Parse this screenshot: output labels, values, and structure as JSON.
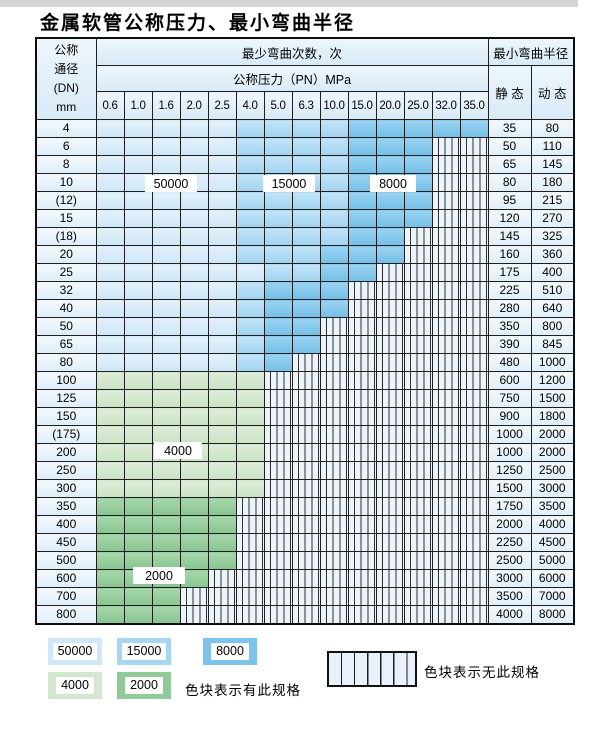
{
  "page": {
    "title": "金属软管公称压力、最小弯曲半径"
  },
  "table": {
    "header": {
      "dn_lines": [
        "公称",
        "通径",
        "(DN)",
        "mm"
      ],
      "min_cycles": "最少弯曲次数，次",
      "pressure_title": "公称压力（PN）MPa",
      "min_radius": "最小弯曲半径",
      "static_label": "静 态",
      "dynamic_label": "动 态",
      "pressure_columns": [
        "0.6",
        "1.0",
        "1.6",
        "2.0",
        "2.5",
        "4.0",
        "5.0",
        "6.3",
        "10.0",
        "15.0",
        "20.0",
        "25.0",
        "32.0",
        "35.0"
      ]
    }
  },
  "legend": {
    "items": [
      {
        "label": "50000",
        "zone": "L",
        "color": "#cfe7f7"
      },
      {
        "label": "15000",
        "zone": "M",
        "color": "#a6d6f2"
      },
      {
        "label": "8000",
        "zone": "D",
        "color": "#7ec4ea"
      },
      {
        "label": "4000",
        "zone": "g",
        "color": "#d2e7cd"
      },
      {
        "label": "2000",
        "zone": "G",
        "color": "#90ca97"
      }
    ],
    "has_spec_text": "色块表示有此规格",
    "no_spec_text": "色块表示无此规格"
  },
  "chart_data": {
    "type": "table",
    "title": "金属软管公称压力、最小弯曲半径",
    "x_columns_pressure_PN_MPa": [
      0.6,
      1.0,
      1.6,
      2.0,
      2.5,
      4.0,
      5.0,
      6.3,
      10.0,
      15.0,
      20.0,
      25.0,
      32.0,
      35.0
    ],
    "zone_cycle_counts": {
      "L": 50000,
      "M": 15000,
      "D": 8000,
      "g": 4000,
      "G": 2000,
      "x": null
    },
    "radius_columns": [
      "静态",
      "动态"
    ],
    "rows": [
      {
        "dn": "4",
        "zones": "LLLLLMMMMDDDDD",
        "static": 35,
        "dynamic": 80
      },
      {
        "dn": "6",
        "zones": "LLLLLMMMMDDDxx",
        "static": 50,
        "dynamic": 110
      },
      {
        "dn": "8",
        "zones": "LLLLLMMMMDDDxx",
        "static": 65,
        "dynamic": 145
      },
      {
        "dn": "10",
        "zones": "LLLLLMMMMDDDxx",
        "static": 80,
        "dynamic": 180
      },
      {
        "dn": "(12)",
        "zones": "LLLLLMMMMDDDxx",
        "static": 95,
        "dynamic": 215
      },
      {
        "dn": "15",
        "zones": "LLLLLMMMMDDDxx",
        "static": 120,
        "dynamic": 270
      },
      {
        "dn": "(18)",
        "zones": "LLLLLMMMMDDxxx",
        "static": 145,
        "dynamic": 325
      },
      {
        "dn": "20",
        "zones": "LLLLLMMMDDDxxx",
        "static": 160,
        "dynamic": 360
      },
      {
        "dn": "25",
        "zones": "LLLLLLMMDDxxxx",
        "static": 175,
        "dynamic": 400
      },
      {
        "dn": "32",
        "zones": "LLLLLMDDDxxxxx",
        "static": 225,
        "dynamic": 510
      },
      {
        "dn": "40",
        "zones": "LLLLLMDDDxxxxx",
        "static": 280,
        "dynamic": 640
      },
      {
        "dn": "50",
        "zones": "LLLLLMDDxxxxxx",
        "static": 350,
        "dynamic": 800
      },
      {
        "dn": "65",
        "zones": "LLLLLMDDxxxxxx",
        "static": 390,
        "dynamic": 845
      },
      {
        "dn": "80",
        "zones": "LLLLLMDxxxxxxx",
        "static": 480,
        "dynamic": 1000
      },
      {
        "dn": "100",
        "zones": "ggggggxxxxxxxx",
        "static": 600,
        "dynamic": 1200
      },
      {
        "dn": "125",
        "zones": "ggggggxxxxxxxx",
        "static": 750,
        "dynamic": 1500
      },
      {
        "dn": "150",
        "zones": "ggggggxxxxxxxx",
        "static": 900,
        "dynamic": 1800
      },
      {
        "dn": "(175)",
        "zones": "ggggggxxxxxxxx",
        "static": 1000,
        "dynamic": 2000
      },
      {
        "dn": "200",
        "zones": "ggggggxxxxxxxx",
        "static": 1000,
        "dynamic": 2000
      },
      {
        "dn": "250",
        "zones": "ggggggxxxxxxxx",
        "static": 1250,
        "dynamic": 2500
      },
      {
        "dn": "300",
        "zones": "ggggggxxxxxxxx",
        "static": 1500,
        "dynamic": 3000
      },
      {
        "dn": "350",
        "zones": "GGGGGxxxxxxxxx",
        "static": 1750,
        "dynamic": 3500
      },
      {
        "dn": "400",
        "zones": "GGGGGxxxxxxxxx",
        "static": 2000,
        "dynamic": 4000
      },
      {
        "dn": "450",
        "zones": "GGGGGxxxxxxxxx",
        "static": 2250,
        "dynamic": 4500
      },
      {
        "dn": "500",
        "zones": "GGGGGxxxxxxxxx",
        "static": 2500,
        "dynamic": 5000
      },
      {
        "dn": "600",
        "zones": "GGGGxxxxxxxxxx",
        "static": 3000,
        "dynamic": 6000
      },
      {
        "dn": "700",
        "zones": "GGGxxxxxxxxxxx",
        "static": 3500,
        "dynamic": 7000
      },
      {
        "dn": "800",
        "zones": "GGGxxxxxxxxxxx",
        "static": 4000,
        "dynamic": 8000
      }
    ]
  }
}
